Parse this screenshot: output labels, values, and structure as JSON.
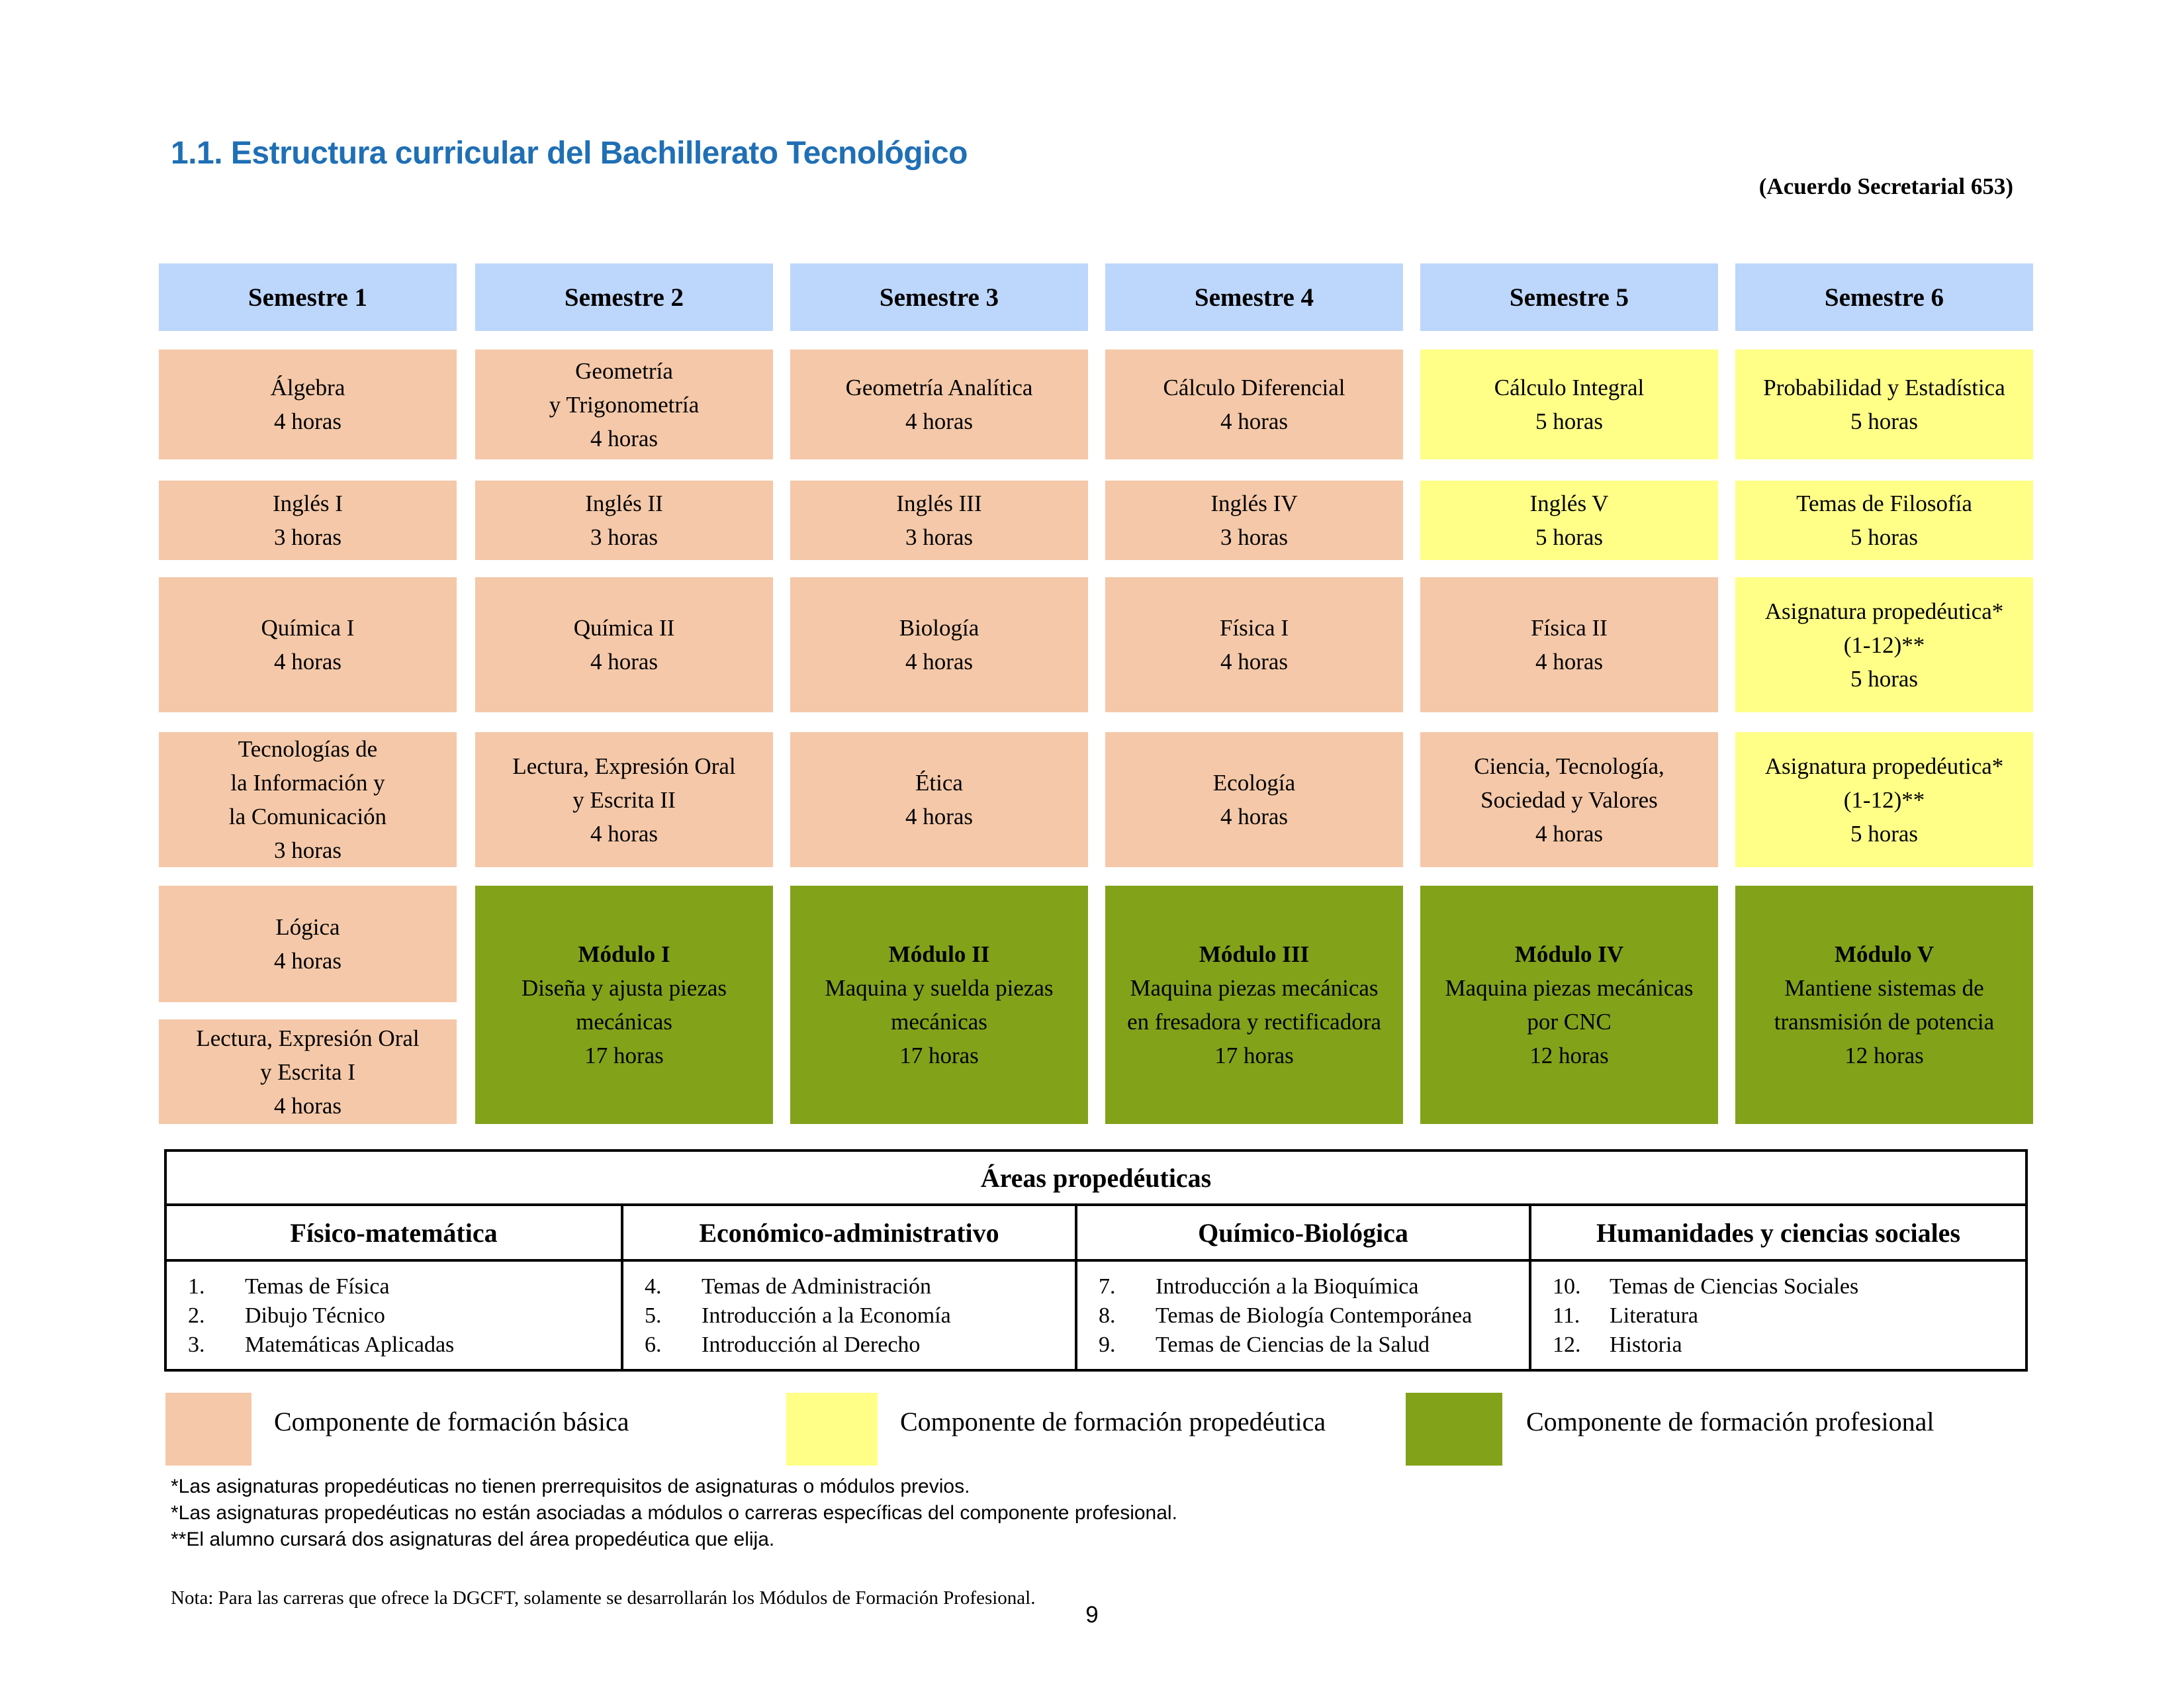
{
  "page": {
    "title": "1.1. Estructura curricular del Bachillerato Tecnológico",
    "agreement": "(Acuerdo Secretarial 653)",
    "page_number": "9"
  },
  "semesters": [
    "Semestre 1",
    "Semestre 2",
    "Semestre 3",
    "Semestre 4",
    "Semestre 5",
    "Semestre 6"
  ],
  "subjects": {
    "s1": [
      {
        "lines": [
          "Álgebra",
          "4 horas"
        ],
        "type": "basic"
      },
      {
        "lines": [
          "Inglés I",
          "3 horas"
        ],
        "type": "basic"
      },
      {
        "lines": [
          "Química I",
          "4 horas"
        ],
        "type": "basic"
      },
      {
        "lines": [
          "Tecnologías de",
          "la Información y",
          "la Comunicación",
          "3 horas"
        ],
        "type": "basic"
      },
      {
        "lines": [
          "Lógica",
          "4 horas"
        ],
        "type": "basic"
      },
      {
        "lines": [
          "Lectura, Expresión Oral",
          "y Escrita I",
          "4 horas"
        ],
        "type": "basic"
      }
    ],
    "s2": [
      {
        "lines": [
          "Geometría",
          "y Trigonometría",
          "4 horas"
        ],
        "type": "basic"
      },
      {
        "lines": [
          "Inglés II",
          "3 horas"
        ],
        "type": "basic"
      },
      {
        "lines": [
          "Química II",
          "4 horas"
        ],
        "type": "basic"
      },
      {
        "lines": [
          "Lectura, Expresión Oral",
          "y Escrita II",
          "4 horas"
        ],
        "type": "basic"
      },
      {
        "title": "Módulo I",
        "lines": [
          "Diseña y ajusta piezas",
          "mecánicas",
          "17 horas"
        ],
        "type": "prof"
      }
    ],
    "s3": [
      {
        "lines": [
          "Geometría Analítica",
          "4 horas"
        ],
        "type": "basic"
      },
      {
        "lines": [
          "Inglés III",
          "3 horas"
        ],
        "type": "basic"
      },
      {
        "lines": [
          "Biología",
          "4 horas"
        ],
        "type": "basic"
      },
      {
        "lines": [
          "Ética",
          "4 horas"
        ],
        "type": "basic"
      },
      {
        "title": "Módulo II",
        "lines": [
          "Maquina y suelda piezas",
          "mecánicas",
          "17 horas"
        ],
        "type": "prof"
      }
    ],
    "s4": [
      {
        "lines": [
          "Cálculo Diferencial",
          "4 horas"
        ],
        "type": "basic"
      },
      {
        "lines": [
          "Inglés IV",
          "3 horas"
        ],
        "type": "basic"
      },
      {
        "lines": [
          "Física I",
          "4 horas"
        ],
        "type": "basic"
      },
      {
        "lines": [
          "Ecología",
          "4 horas"
        ],
        "type": "basic"
      },
      {
        "title": "Módulo III",
        "lines": [
          "Maquina piezas mecánicas",
          "en fresadora y rectificadora",
          "17 horas"
        ],
        "type": "prof"
      }
    ],
    "s5": [
      {
        "lines": [
          "Cálculo Integral",
          "5 horas"
        ],
        "type": "prop"
      },
      {
        "lines": [
          "Inglés V",
          "5 horas"
        ],
        "type": "prop"
      },
      {
        "lines": [
          "Física II",
          "4 horas"
        ],
        "type": "basic"
      },
      {
        "lines": [
          "Ciencia, Tecnología,",
          "Sociedad y Valores",
          "4 horas"
        ],
        "type": "basic"
      },
      {
        "title": "Módulo IV",
        "lines": [
          "Maquina piezas mecánicas",
          "por CNC",
          "12 horas"
        ],
        "type": "prof"
      }
    ],
    "s6": [
      {
        "lines": [
          "Probabilidad y Estadística",
          "5 horas"
        ],
        "type": "prop"
      },
      {
        "lines": [
          "Temas de Filosofía",
          "5 horas"
        ],
        "type": "prop"
      },
      {
        "lines": [
          "Asignatura propedéutica*",
          "(1-12)**",
          "5 horas"
        ],
        "type": "prop"
      },
      {
        "lines": [
          "Asignatura propedéutica*",
          "(1-12)**",
          "5 horas"
        ],
        "type": "prop"
      },
      {
        "title": "Módulo V",
        "lines": [
          "Mantiene sistemas de",
          "transmisión de potencia",
          "12 horas"
        ],
        "type": "prof"
      }
    ]
  },
  "areas": {
    "title": "Áreas propedéuticas",
    "columns": [
      {
        "name": "Físico-matemática",
        "items": [
          [
            "1.",
            "Temas de Física"
          ],
          [
            "2.",
            "Dibujo Técnico"
          ],
          [
            "3.",
            "Matemáticas Aplicadas"
          ]
        ]
      },
      {
        "name": "Económico-administrativo",
        "items": [
          [
            "4.",
            "Temas de Administración"
          ],
          [
            "5.",
            "Introducción a la Economía"
          ],
          [
            "6.",
            "Introducción al Derecho"
          ]
        ]
      },
      {
        "name": "Químico-Biológica",
        "items": [
          [
            "7.",
            "Introducción a la Bioquímica"
          ],
          [
            "8.",
            "Temas de Biología Contemporánea"
          ],
          [
            "9.",
            "Temas de Ciencias de la Salud"
          ]
        ]
      },
      {
        "name": "Humanidades y ciencias sociales",
        "items": [
          [
            "10.",
            "Temas de Ciencias Sociales"
          ],
          [
            "11.",
            "Literatura"
          ],
          [
            "12.",
            "Historia"
          ]
        ]
      }
    ]
  },
  "legend": {
    "basic": "Componente de formación básica",
    "prop": "Componente de formación propedéutica",
    "prof": "Componente de formación profesional"
  },
  "colors": {
    "basic": "#f4c8a8",
    "prop": "#ffff88",
    "prof": "#82a21a",
    "header": "#bdd6fb",
    "title": "#1f6fb5"
  },
  "notes": [
    "*Las asignaturas propedéuticas no tienen prerrequisitos de asignaturas o módulos previos.",
    "*Las asignaturas propedéuticas no están asociadas a módulos o carreras específicas del componente profesional.",
    "**El alumno cursará dos asignaturas del área propedéutica que elija."
  ],
  "nota": "Nota: Para las carreras que ofrece la DGCFT, solamente se desarrollarán los Módulos de Formación Profesional."
}
